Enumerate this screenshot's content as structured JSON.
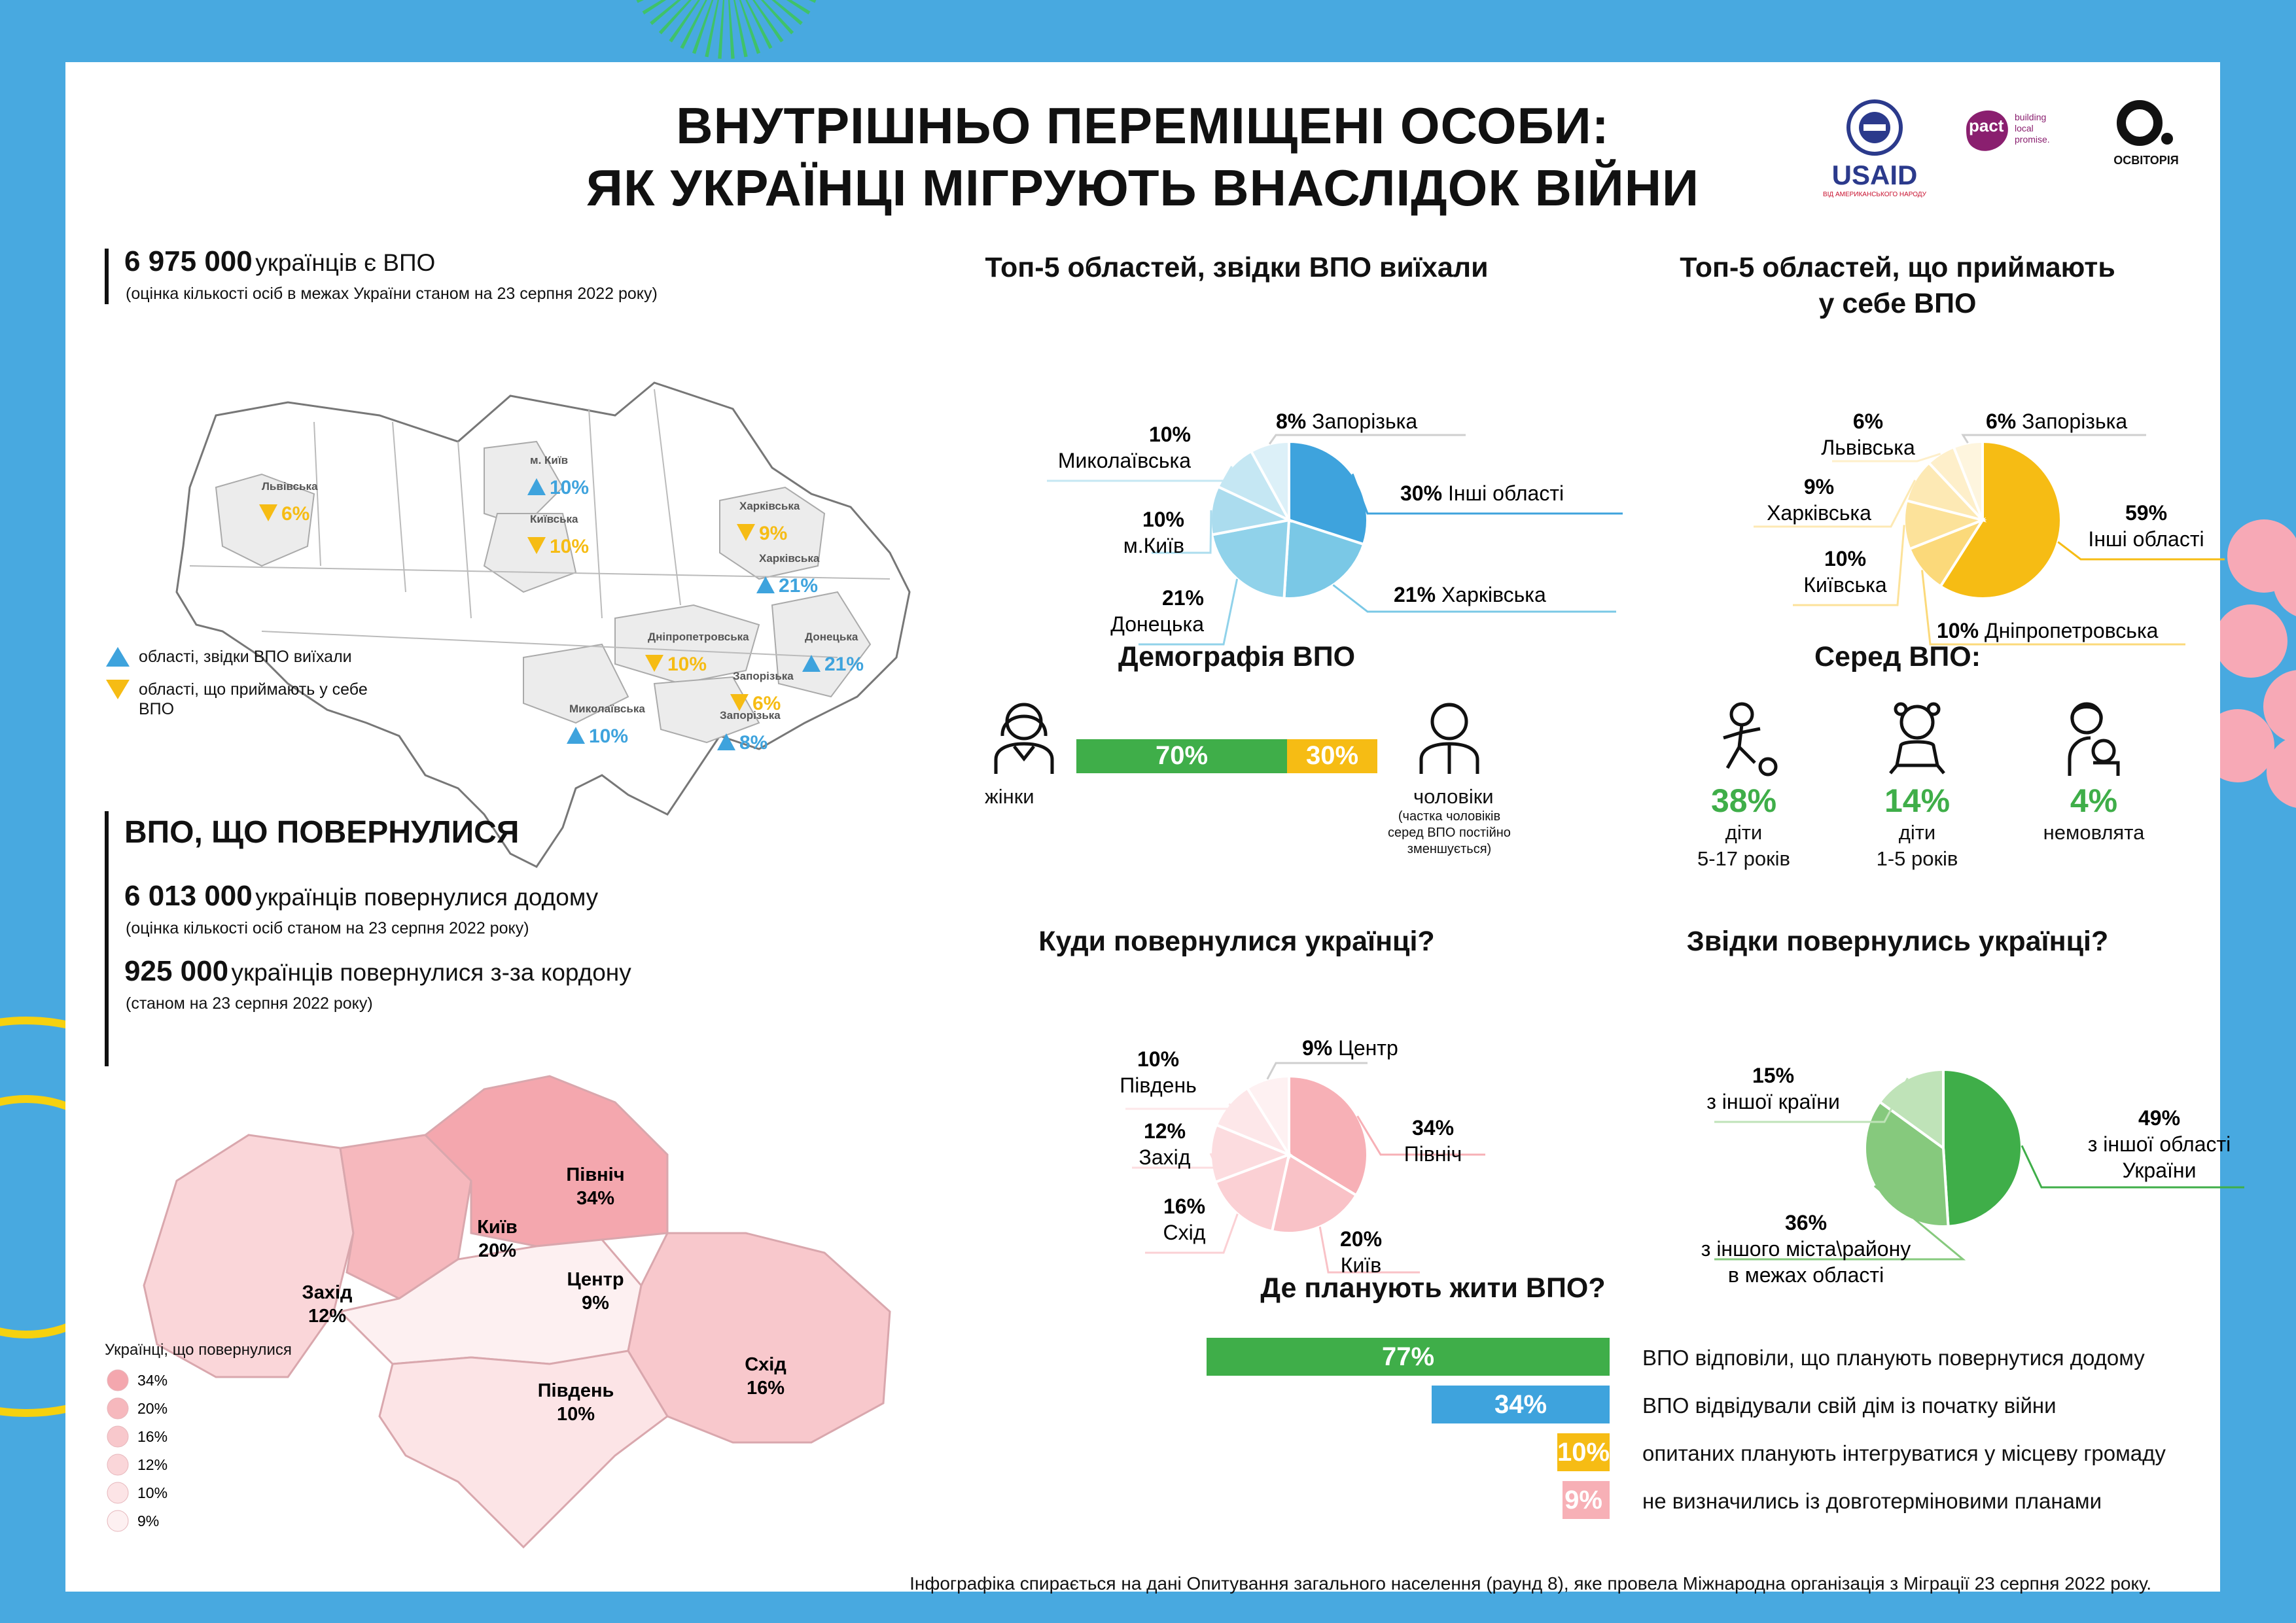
{
  "header": {
    "title_line1": "ВНУТРІШНЬО ПЕРЕМІЩЕНІ ОСОБИ:",
    "title_line2": "ЯК УКРАЇНЦІ МІГРУЮТЬ ВНАСЛІДОК ВІЙНИ",
    "logos": {
      "usaid": "USAID",
      "usaid_sub": "ВІД АМЕРИКАНСЬКОГО НАРОДУ",
      "pact": "pact",
      "pact_tag1": "building",
      "pact_tag2": "local",
      "pact_tag3": "promise.",
      "osvitoria": "ОСВІТОРІЯ"
    }
  },
  "idp_total": {
    "value": "6 975 000",
    "text": "українців є ВПО",
    "note": "(оцінка кількості осіб в межах України станом на 23 серпня 2022 року)"
  },
  "idp_map": {
    "regions": [
      {
        "name": "Львівська",
        "pct": "6%",
        "type": "receive"
      },
      {
        "name": "м. Київ",
        "pct": "10%",
        "type": "leave"
      },
      {
        "name": "Київська",
        "pct": "10%",
        "type": "receive"
      },
      {
        "name": "Харківська",
        "pct": "9%",
        "type": "receive"
      },
      {
        "name": "Харківська",
        "pct": "21%",
        "type": "leave"
      },
      {
        "name": "Дніпропетровська",
        "pct": "10%",
        "type": "receive"
      },
      {
        "name": "Донецька",
        "pct": "21%",
        "type": "leave"
      },
      {
        "name": "Запорізька",
        "pct": "6%",
        "type": "receive"
      },
      {
        "name": "Запорізька",
        "pct": "8%",
        "type": "leave"
      },
      {
        "name": "Миколаївська",
        "pct": "10%",
        "type": "leave"
      }
    ],
    "legend_leave": "області, звідки ВПО виїхали",
    "legend_receive_1": "області, що приймають у себе",
    "legend_receive_2": "ВПО"
  },
  "returned": {
    "heading": "ВПО, ЩО ПОВЕРНУЛИСЯ",
    "home_value": "6 013 000",
    "home_text": "українців повернулися додому",
    "home_note": "(оцінка кількості осіб станом на 23 серпня 2022 року)",
    "abroad_value": "925 000",
    "abroad_text": "українців повернулися з-за кордону",
    "abroad_note": "(станом на 23 серпня 2022 року)"
  },
  "return_map": {
    "regions": [
      {
        "name": "Північ",
        "pct": "34%"
      },
      {
        "name": "Київ",
        "pct": "20%"
      },
      {
        "name": "Захід",
        "pct": "12%"
      },
      {
        "name": "Центр",
        "pct": "9%"
      },
      {
        "name": "Схід",
        "pct": "16%"
      },
      {
        "name": "Південь",
        "pct": "10%"
      }
    ],
    "legend_title": "Українці, що повернулися",
    "legend": [
      {
        "label": "34%",
        "color": "#f4a7ae"
      },
      {
        "label": "20%",
        "color": "#f6b8bd"
      },
      {
        "label": "16%",
        "color": "#f8c8cc"
      },
      {
        "label": "12%",
        "color": "#fad6d9"
      },
      {
        "label": "10%",
        "color": "#fce4e6"
      },
      {
        "label": "9%",
        "color": "#fdf0f1"
      }
    ]
  },
  "colors": {
    "blue": "#3ea3dd",
    "yellow": "#f6bc14",
    "green": "#3fae49",
    "pink": "#f7b0b6",
    "frame": "#48a9e0"
  },
  "chart_data": [
    {
      "type": "pie",
      "title": "Топ-5 областей, звідки ВПО виїхали",
      "slices": [
        {
          "label": "Інші області",
          "value": 30,
          "pct": "30%",
          "color": "#3ea3dd"
        },
        {
          "label": "Харківська",
          "value": 21,
          "pct": "21%",
          "color": "#7ac8e6"
        },
        {
          "label": "Донецька",
          "value": 21,
          "pct": "21%",
          "color": "#90d2ea"
        },
        {
          "label": "м.Київ",
          "value": 10,
          "pct": "10%",
          "color": "#abdcee"
        },
        {
          "label": "Миколаївська",
          "value": 10,
          "pct": "10%",
          "color": "#c5e7f3"
        },
        {
          "label": "Запорізька",
          "value": 8,
          "pct": "8%",
          "color": "#dcf0f8"
        }
      ]
    },
    {
      "type": "pie",
      "title_line1": "Топ-5 областей, що приймають",
      "title_line2": "у себе ВПО",
      "slices": [
        {
          "label": "Інші області",
          "value": 59,
          "pct": "59%",
          "color": "#f6bc14"
        },
        {
          "label": "Дніпропетровська",
          "value": 10,
          "pct": "10%",
          "color": "#fbd97a"
        },
        {
          "label": "Київська",
          "value": 10,
          "pct": "10%",
          "color": "#fce29a"
        },
        {
          "label": "Харківська",
          "value": 9,
          "pct": "9%",
          "color": "#fde9b4"
        },
        {
          "label": "Львівська",
          "value": 6,
          "pct": "6%",
          "color": "#feefca"
        },
        {
          "label": "Запорізька",
          "value": 6,
          "pct": "6%",
          "color": "#fef5de"
        }
      ]
    },
    {
      "type": "bar",
      "title": "Демографія ВПО",
      "series": [
        {
          "name": "жінки",
          "value": 70,
          "pct": "70%",
          "color": "#3fae49"
        },
        {
          "name": "чоловіки",
          "value": 30,
          "pct": "30%",
          "color": "#f6bc14"
        }
      ],
      "men_note_1": "(частка чоловіків",
      "men_note_2": "серед ВПО постійно",
      "men_note_3": "зменшується)"
    },
    {
      "type": "table",
      "title": "Серед ВПО:",
      "items": [
        {
          "pct": "38%",
          "label_1": "діти",
          "label_2": "5-17 років"
        },
        {
          "pct": "14%",
          "label_1": "діти",
          "label_2": "1-5 років"
        },
        {
          "pct": "4%",
          "label_1": "немовлята",
          "label_2": ""
        }
      ]
    },
    {
      "type": "pie",
      "title": "Куди повернулися українці?",
      "slices": [
        {
          "label": "Північ",
          "value": 34,
          "pct": "34%",
          "color": "#f7b0b6"
        },
        {
          "label": "Київ",
          "value": 20,
          "pct": "20%",
          "color": "#f9c2c7"
        },
        {
          "label": "Схід",
          "value": 16,
          "pct": "16%",
          "color": "#fbd0d4"
        },
        {
          "label": "Захід",
          "value": 12,
          "pct": "12%",
          "color": "#fcdcdf"
        },
        {
          "label": "Південь",
          "value": 10,
          "pct": "10%",
          "color": "#fde7e9"
        },
        {
          "label": "Центр",
          "value": 9,
          "pct": "9%",
          "color": "#fef1f2"
        }
      ]
    },
    {
      "type": "pie",
      "title": "Звідки повернулись українці?",
      "slices": [
        {
          "label_1": "з іншої області",
          "label_2": "України",
          "value": 49,
          "pct": "49%",
          "color": "#3fae49"
        },
        {
          "label_1": "з іншого міста\\району",
          "label_2": "в межах області",
          "value": 36,
          "pct": "36%",
          "color": "#86c97d"
        },
        {
          "label_1": "з іншої країни",
          "label_2": "",
          "value": 15,
          "pct": "15%",
          "color": "#bfe3b8"
        }
      ]
    },
    {
      "type": "bar",
      "title": "Де планують жити ВПО?",
      "bars": [
        {
          "value": 77,
          "pct": "77%",
          "label": "ВПО відповіли, що планують повернутися додому",
          "color": "#3fae49"
        },
        {
          "value": 34,
          "pct": "34%",
          "label": "ВПО відвідували свій дім із початку війни",
          "color": "#3ea3dd"
        },
        {
          "value": 10,
          "pct": "10%",
          "label": "опитаних планують інтегруватися у місцеву громаду",
          "color": "#f6bc14"
        },
        {
          "value": 9,
          "pct": "9%",
          "label": "не визначились із довготерміновими планами",
          "color": "#f7b0b6"
        }
      ]
    }
  ],
  "footer": "Інфографіка спирається на дані Опитування загального населення (раунд 8), яке провела Міжнародна організація з Міграції 23 серпня 2022 року."
}
